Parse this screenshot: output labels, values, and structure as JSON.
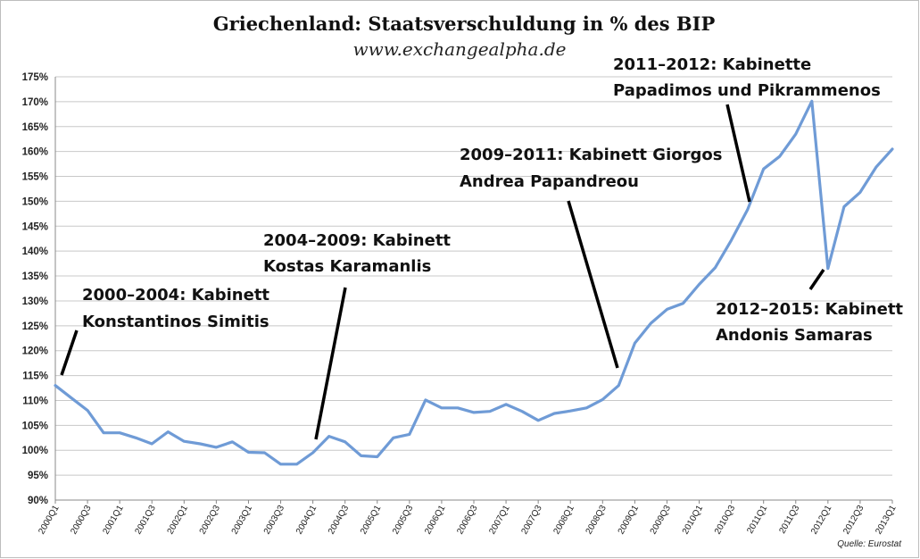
{
  "chart_data": {
    "type": "line",
    "title": "Griechenland: Staatsverschuldung in % des BIP",
    "subtitle": "www.exchangealpha.de",
    "source": "Quelle: Eurostat",
    "ylim": [
      90,
      175
    ],
    "ystep": 5,
    "y_tick_suffix": "%",
    "grid": true,
    "legend": "none",
    "line_color": "#6f9bd6",
    "x_tick_labels": [
      "2000Q1",
      "2000Q3",
      "2001Q1",
      "2001Q3",
      "2002Q1",
      "2002Q3",
      "2003Q1",
      "2003Q3",
      "2004Q1",
      "2004Q3",
      "2005Q1",
      "2005Q3",
      "2006Q1",
      "2006Q3",
      "2007Q1",
      "2007Q3",
      "2008Q1",
      "2008Q3",
      "2009Q1",
      "2009Q3",
      "2010Q1",
      "2010Q3",
      "2011Q1",
      "2011Q3",
      "2012Q1",
      "2012Q3",
      "2013Q1"
    ],
    "series": [
      {
        "x": [
          "2000Q1",
          "2000Q2",
          "2000Q3",
          "2000Q4",
          "2001Q1",
          "2001Q2",
          "2001Q3",
          "2001Q4",
          "2002Q1",
          "2002Q2",
          "2002Q3",
          "2002Q4",
          "2003Q1",
          "2003Q2",
          "2003Q3",
          "2003Q4",
          "2004Q1",
          "2004Q2",
          "2004Q3",
          "2004Q4",
          "2005Q1",
          "2005Q2",
          "2005Q3",
          "2005Q4",
          "2006Q1",
          "2006Q2",
          "2006Q3",
          "2006Q4",
          "2007Q1",
          "2007Q2",
          "2007Q3",
          "2007Q4",
          "2008Q1",
          "2008Q2",
          "2008Q3",
          "2008Q4",
          "2009Q1",
          "2009Q2",
          "2009Q3",
          "2009Q4",
          "2010Q1",
          "2010Q2",
          "2010Q3",
          "2010Q4",
          "2011Q1",
          "2011Q2",
          "2011Q3",
          "2011Q4",
          "2012Q1",
          "2012Q2",
          "2012Q3",
          "2012Q4",
          "2013Q1"
        ],
        "values": [
          113.0,
          110.5,
          108.0,
          103.5,
          103.5,
          102.5,
          101.3,
          103.7,
          101.8,
          101.3,
          100.6,
          101.7,
          99.6,
          99.5,
          97.2,
          97.2,
          99.5,
          102.8,
          101.7,
          98.9,
          98.7,
          102.5,
          103.2,
          110.1,
          108.5,
          108.5,
          107.6,
          107.8,
          109.2,
          107.8,
          106.0,
          107.4,
          107.9,
          108.5,
          110.2,
          113.0,
          121.5,
          125.5,
          128.3,
          129.5,
          133.3,
          136.7,
          142.2,
          148.3,
          156.5,
          159.0,
          163.5,
          170.1,
          136.5,
          148.9,
          151.8,
          156.9,
          160.5
        ]
      }
    ],
    "annotations": [
      {
        "line1": "2000–2004: Kabinett",
        "line2": "Konstantinos Simitis"
      },
      {
        "line1": "2004–2009: Kabinett",
        "line2": "Kostas Karamanlis"
      },
      {
        "line1": "2009–2011: Kabinett Giorgos",
        "line2": "Andrea Papandreou"
      },
      {
        "line1": "2011–2012: Kabinette",
        "line2": "Papadimos und Pikrammenos"
      },
      {
        "line1": "2012–2015: Kabinett",
        "line2": "Andonis Samaras"
      }
    ]
  }
}
